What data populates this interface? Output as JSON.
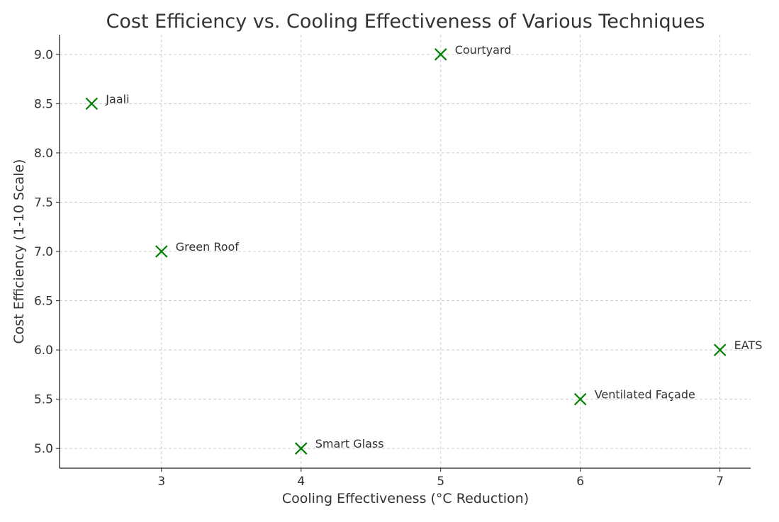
{
  "chart_data": {
    "type": "scatter",
    "title": "Cost Efficiency vs. Cooling Effectiveness of Various Techniques",
    "xlabel": "Cooling Effectiveness (°C Reduction)",
    "ylabel": "Cost Efficiency (1-10 Scale)",
    "xlim": [
      2.27,
      7.22
    ],
    "ylim": [
      4.8,
      9.2
    ],
    "xticks": [
      3,
      4,
      5,
      6,
      7
    ],
    "xtick_labels": [
      "3",
      "4",
      "5",
      "6",
      "7"
    ],
    "yticks": [
      5.0,
      5.5,
      6.0,
      6.5,
      7.0,
      7.5,
      8.0,
      8.5,
      9.0
    ],
    "ytick_labels": [
      "5.0",
      "5.5",
      "6.0",
      "6.5",
      "7.0",
      "7.5",
      "8.0",
      "8.5",
      "9.0"
    ],
    "grid": true,
    "marker": "x",
    "color": "#008000",
    "points": [
      {
        "label": "Jaali",
        "x": 2.5,
        "y": 8.5
      },
      {
        "label": "Green Roof",
        "x": 3,
        "y": 7.0
      },
      {
        "label": "Smart Glass",
        "x": 4,
        "y": 5.0
      },
      {
        "label": "Courtyard",
        "x": 5,
        "y": 9.0
      },
      {
        "label": "Ventilated Façade",
        "x": 6,
        "y": 5.5
      },
      {
        "label": "EATS",
        "x": 7,
        "y": 6.0
      }
    ]
  }
}
